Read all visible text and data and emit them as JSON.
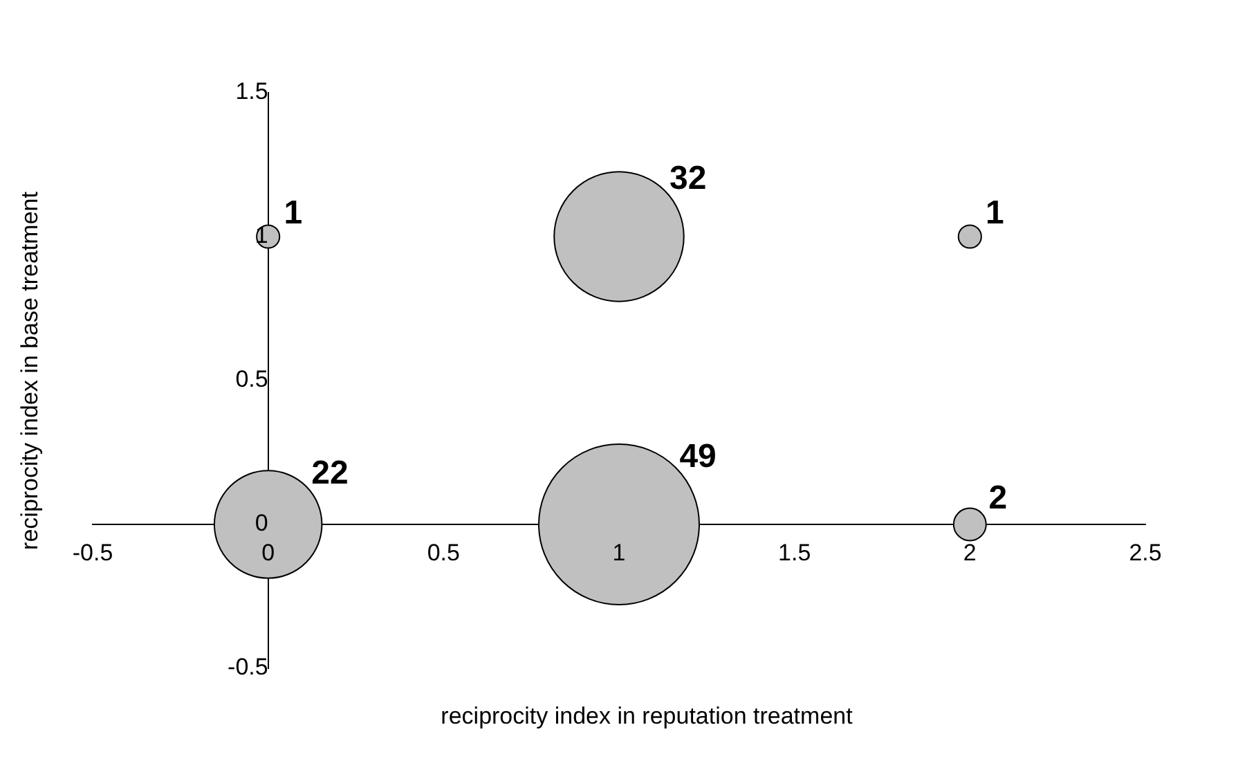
{
  "chart_data": {
    "type": "bubble",
    "xlabel": "reciprocity index in reputation treatment",
    "ylabel": "reciprocity index in base treatment",
    "x": [
      0,
      1,
      2,
      0,
      1,
      2
    ],
    "values": [
      0,
      0,
      0,
      1,
      1,
      1
    ],
    "sizes": [
      22,
      49,
      2,
      1,
      32,
      1
    ],
    "value_labels": [
      "22",
      "49",
      "2",
      "1",
      "32",
      "1"
    ],
    "color": "#c0c0c0",
    "marker": "circle",
    "xlim": [
      -0.5,
      2.5
    ],
    "xticks": [
      -0.5,
      0,
      0.5,
      1,
      1.5,
      2,
      2.5
    ],
    "ylim": [
      -0.5,
      1.5
    ],
    "yticks": [
      -0.5,
      0,
      0.5,
      1,
      1.5
    ],
    "grid": false,
    "legend": false
  }
}
